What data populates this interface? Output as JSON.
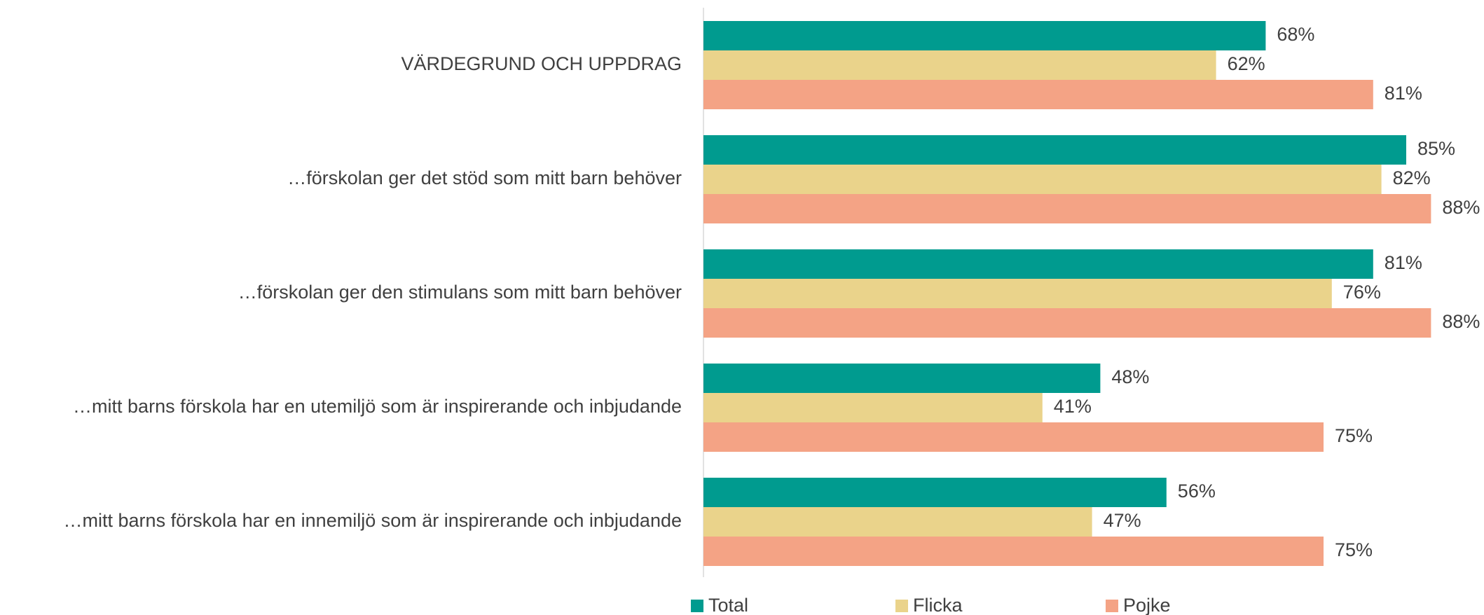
{
  "chart_data": {
    "type": "hbar",
    "categories": [
      "VÄRDEGRUND OCH UPPDRAG",
      "…förskolan ger det stöd som mitt barn behöver",
      "…förskolan ger den stimulans som mitt barn behöver",
      "…mitt barns förskola har en utemiljö som är inspirerande och inbjudande",
      "…mitt barns förskola har en innemiljö som är inspirerande och inbjudande"
    ],
    "series": [
      {
        "name": "Total",
        "color": "#009b8f",
        "values": [
          68,
          85,
          81,
          48,
          56
        ],
        "value_labels": [
          "68%",
          "85%",
          "81%",
          "48%",
          "56%"
        ]
      },
      {
        "name": "Flicka",
        "color": "#ead38b",
        "values": [
          62,
          82,
          76,
          41,
          47
        ],
        "value_labels": [
          "62%",
          "82%",
          "76%",
          "41%",
          "47%"
        ]
      },
      {
        "name": "Pojke",
        "color": "#f4a385",
        "values": [
          81,
          88,
          88,
          75,
          75
        ],
        "value_labels": [
          "81%",
          "88%",
          "88%",
          "75%",
          "75%"
        ]
      }
    ],
    "legend": "bottom"
  }
}
